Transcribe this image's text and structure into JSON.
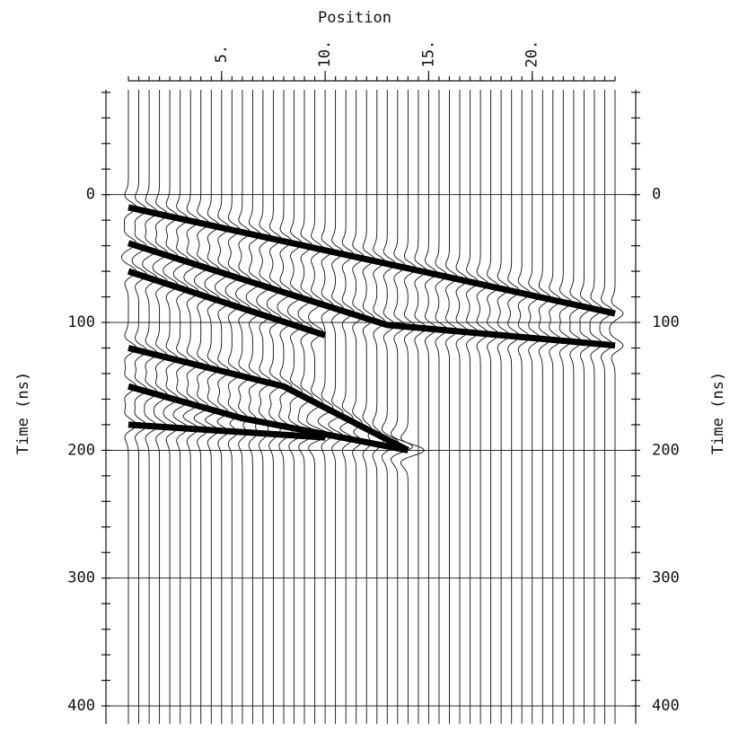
{
  "chart_data": {
    "type": "wiggle",
    "x_label": "Position",
    "y_label": "Time (ns)",
    "xlim": [
      0.5,
      24
    ],
    "ylim": [
      -82,
      414
    ],
    "xticks": [
      {
        "value": 5,
        "label": "5."
      },
      {
        "value": 10,
        "label": "10."
      },
      {
        "value": 15,
        "label": "15."
      },
      {
        "value": 20,
        "label": "20."
      }
    ],
    "yticks": [
      0,
      100,
      200,
      300,
      400
    ],
    "grid": true,
    "color": "#000000",
    "events": [
      {
        "x": [
          0.5,
          24
        ],
        "y": [
          10,
          93
        ]
      },
      {
        "x": [
          0.5,
          13,
          24
        ],
        "y": [
          38,
          102,
          118
        ]
      },
      {
        "x": [
          0.5,
          10
        ],
        "y": [
          60,
          110
        ]
      },
      {
        "x": [
          0.5,
          8,
          14
        ],
        "y": [
          120,
          150,
          200
        ]
      },
      {
        "x": [
          0.5,
          6,
          14
        ],
        "y": [
          150,
          175,
          200
        ]
      },
      {
        "x": [
          0.5,
          10
        ],
        "y": [
          180,
          190
        ]
      }
    ]
  }
}
